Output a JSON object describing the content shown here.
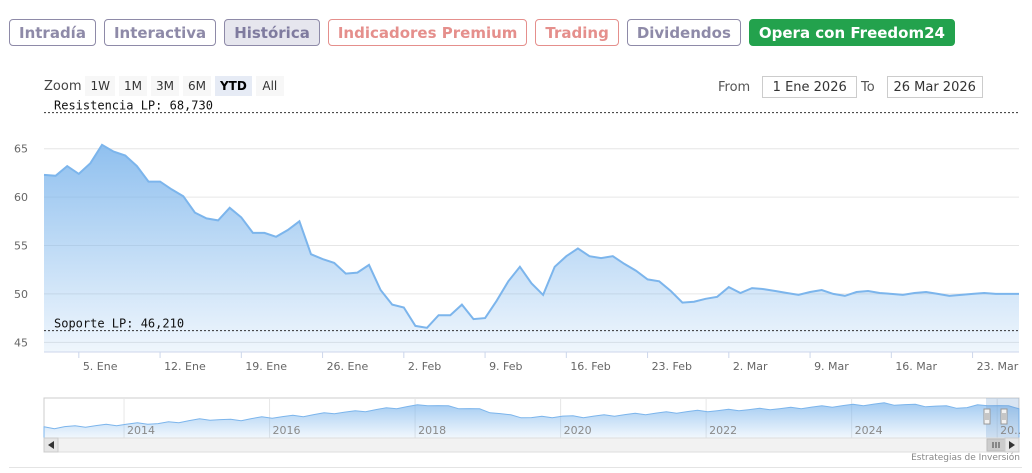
{
  "tabs": [
    {
      "label": "Intradía",
      "style": "normal"
    },
    {
      "label": "Interactiva",
      "style": "normal"
    },
    {
      "label": "Histórica",
      "style": "active"
    },
    {
      "label": "Indicadores Premium",
      "style": "premium"
    },
    {
      "label": "Trading",
      "style": "premium"
    },
    {
      "label": "Dividendos",
      "style": "normal"
    },
    {
      "label": "Opera con Freedom24",
      "style": "green"
    }
  ],
  "zoom": {
    "label": "Zoom",
    "buttons": [
      "1W",
      "1M",
      "3M",
      "6M",
      "YTD",
      "All"
    ],
    "active": "YTD"
  },
  "range": {
    "from_label": "From",
    "from_value": "1 Ene 2026",
    "to_label": "To",
    "to_value": "26 Mar 2026"
  },
  "credit": "Estrategias de Inversión",
  "colors": {
    "line": "#7cb5ec",
    "area_top": "#7cb5ec",
    "grid": "#e6e6e6",
    "green": "#23a24d",
    "premium": "#e58f8c",
    "tab": "#8e8aa8"
  },
  "chart_data": {
    "type": "area",
    "ylim": [
      44,
      69
    ],
    "yticks": [
      45,
      50,
      55,
      60,
      65
    ],
    "xtick_labels": [
      "5. Ene",
      "12. Ene",
      "19. Ene",
      "26. Ene",
      "2. Feb",
      "9. Feb",
      "16. Feb",
      "23. Feb",
      "2. Mar",
      "9. Mar",
      "16. Mar",
      "23. Mar"
    ],
    "xtick_days": [
      4,
      11,
      18,
      25,
      32,
      39,
      46,
      53,
      60,
      67,
      74,
      81
    ],
    "x_days_range": [
      1,
      85
    ],
    "levels": [
      {
        "label": "Resistencia LP: 68,730",
        "value": 68.73
      },
      {
        "label": "Soporte LP: 46,210",
        "value": 46.21
      }
    ],
    "series": [
      {
        "x_days": [
          1,
          2,
          3,
          4,
          5,
          6,
          7,
          8,
          9,
          10,
          11,
          12,
          13,
          14,
          15,
          16,
          17,
          18,
          19,
          20,
          21,
          22,
          23,
          24,
          25,
          26,
          27,
          28,
          29,
          30,
          31,
          32,
          33,
          34,
          35,
          36,
          37,
          38,
          39,
          40,
          41,
          42,
          43,
          44,
          45,
          46,
          47,
          48,
          49,
          50,
          51,
          52,
          53,
          54,
          55,
          56,
          57,
          58,
          59,
          60,
          61,
          62,
          63,
          64,
          65,
          66,
          67,
          68,
          69,
          70,
          71,
          72,
          73,
          74,
          75,
          76,
          77,
          78,
          79,
          80,
          81,
          82,
          83,
          84,
          85
        ],
        "values": [
          62.3,
          62.2,
          63.2,
          62.4,
          63.5,
          65.4,
          64.7,
          64.3,
          63.2,
          61.6,
          61.6,
          60.8,
          60.1,
          58.4,
          57.8,
          57.6,
          58.9,
          57.9,
          56.3,
          56.3,
          55.9,
          56.6,
          57.5,
          54.1,
          53.6,
          53.2,
          52.1,
          52.2,
          53.0,
          50.4,
          48.9,
          48.6,
          46.7,
          46.5,
          47.8,
          47.8,
          48.9,
          47.4,
          47.5,
          49.3,
          51.3,
          52.8,
          51.1,
          49.9,
          52.8,
          53.9,
          54.7,
          53.9,
          53.7,
          53.9,
          53.1,
          52.4,
          51.5,
          51.3,
          50.3,
          49.1,
          49.2,
          49.5,
          49.7,
          50.7,
          50.1,
          50.6,
          50.5,
          50.3,
          50.1,
          49.9,
          50.2,
          50.4,
          50.0,
          49.8,
          50.2,
          50.3,
          50.1,
          50.0,
          49.9,
          50.1,
          50.2,
          50.0,
          49.8,
          49.9,
          50.0,
          50.1,
          50.0,
          50.0,
          50.0
        ]
      }
    ],
    "navigator": {
      "year_labels": [
        "2014",
        "2016",
        "2018",
        "2020",
        "2022",
        "2024",
        "20.."
      ],
      "year_positions": [
        2014,
        2016,
        2018,
        2020,
        2022,
        2024,
        2026
      ],
      "x_range": [
        2012.9,
        2026.3
      ],
      "values": [
        30,
        30,
        31,
        31,
        31.5,
        32,
        32.5,
        33,
        33.5,
        34,
        34.5,
        34,
        35,
        36,
        37,
        38,
        38.5,
        38,
        37.5,
        38,
        39,
        40,
        40.5,
        41,
        41.5,
        42,
        43,
        44,
        45,
        45.5,
        46,
        47,
        48,
        49,
        50,
        51,
        52,
        53,
        52,
        51,
        50,
        49,
        48,
        46,
        44,
        42,
        41,
        40,
        40.5,
        41,
        41.5,
        41,
        41,
        41.5,
        42,
        42.5,
        43,
        43.5,
        44,
        44.5,
        45,
        45.5,
        46,
        46.5,
        47,
        47,
        47.5,
        48,
        48,
        48.5,
        49,
        49,
        49.5,
        50,
        50.5,
        51,
        51.5,
        52,
        52.5,
        53,
        53.5,
        54,
        53.5,
        53,
        52.5,
        52,
        51.5,
        51,
        50.5,
        50,
        52,
        53,
        52,
        51,
        50
      ]
    }
  }
}
